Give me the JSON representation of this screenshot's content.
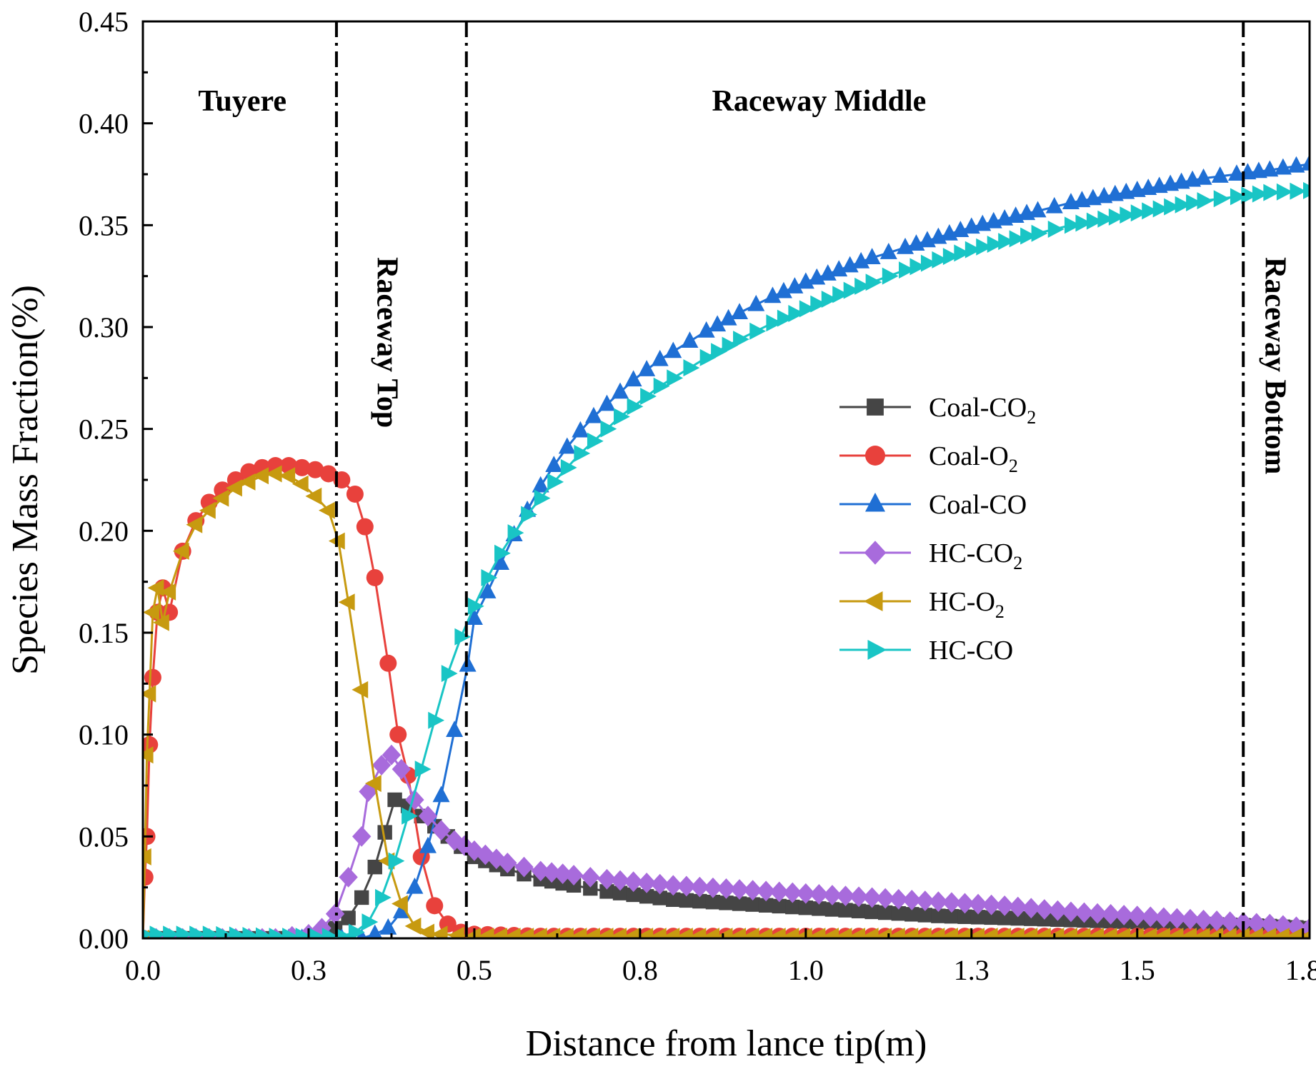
{
  "chart_data": {
    "type": "line",
    "xlabel": "Distance from lance tip(m)",
    "ylabel": "Species Mass Fraction(%)",
    "xlim": [
      0.0,
      1.76
    ],
    "ylim": [
      0.0,
      0.45
    ],
    "x_ticks": [
      0.0,
      0.25,
      0.5,
      0.75,
      1.0,
      1.25,
      1.5,
      1.75
    ],
    "x_tick_labels": [
      "0.0",
      "0.3",
      "0.5",
      "0.8",
      "1.0",
      "1.3",
      "1.5",
      "1.8"
    ],
    "y_ticks": [
      0.0,
      0.05,
      0.1,
      0.15,
      0.2,
      0.25,
      0.3,
      0.35,
      0.4,
      0.45
    ],
    "y_tick_labels": [
      "0.00",
      "0.05",
      "0.10",
      "0.15",
      "0.20",
      "0.25",
      "0.30",
      "0.35",
      "0.40",
      "0.45"
    ],
    "grid": false,
    "legend_position": "center-right",
    "region_lines": [
      0.292,
      0.488,
      1.66
    ],
    "regions": [
      {
        "label": "Tuyere",
        "x": 0.15,
        "orientation": "horizontal"
      },
      {
        "label": "Raceway Top",
        "x": 0.37,
        "orientation": "vertical"
      },
      {
        "label": "Raceway Middle",
        "x": 1.02,
        "orientation": "horizontal"
      },
      {
        "label": "Raceway Bottom",
        "x": 1.71,
        "orientation": "vertical"
      }
    ],
    "series": [
      {
        "name": "Coal-CO2",
        "label_main": "Coal-CO",
        "label_sub": "2",
        "color": "#454545",
        "marker": "square",
        "points": [
          [
            0.0,
            0.0
          ],
          [
            0.1,
            0.0
          ],
          [
            0.2,
            0.0
          ],
          [
            0.27,
            0.0
          ],
          [
            0.29,
            0.005
          ],
          [
            0.31,
            0.01
          ],
          [
            0.33,
            0.02
          ],
          [
            0.35,
            0.035
          ],
          [
            0.365,
            0.052
          ],
          [
            0.38,
            0.068
          ],
          [
            0.4,
            0.065
          ],
          [
            0.42,
            0.06
          ],
          [
            0.44,
            0.055
          ],
          [
            0.46,
            0.05
          ],
          [
            0.48,
            0.045
          ],
          [
            0.5,
            0.04
          ],
          [
            0.55,
            0.034
          ],
          [
            0.6,
            0.029
          ],
          [
            0.65,
            0.026
          ],
          [
            0.7,
            0.023
          ],
          [
            0.8,
            0.019
          ],
          [
            0.9,
            0.017
          ],
          [
            1.0,
            0.015
          ],
          [
            1.1,
            0.013
          ],
          [
            1.2,
            0.011
          ],
          [
            1.3,
            0.01
          ],
          [
            1.4,
            0.009
          ],
          [
            1.5,
            0.008
          ],
          [
            1.6,
            0.007
          ],
          [
            1.7,
            0.006
          ],
          [
            1.76,
            0.005
          ]
        ]
      },
      {
        "name": "Coal-O2",
        "label_main": "Coal-O",
        "label_sub": "2",
        "color": "#e8413c",
        "marker": "circle",
        "points": [
          [
            0.0,
            0.0
          ],
          [
            0.003,
            0.03
          ],
          [
            0.006,
            0.05
          ],
          [
            0.01,
            0.095
          ],
          [
            0.015,
            0.128
          ],
          [
            0.022,
            0.16
          ],
          [
            0.03,
            0.172
          ],
          [
            0.04,
            0.16
          ],
          [
            0.06,
            0.19
          ],
          [
            0.08,
            0.205
          ],
          [
            0.1,
            0.214
          ],
          [
            0.12,
            0.22
          ],
          [
            0.14,
            0.225
          ],
          [
            0.16,
            0.229
          ],
          [
            0.18,
            0.231
          ],
          [
            0.2,
            0.232
          ],
          [
            0.22,
            0.232
          ],
          [
            0.24,
            0.231
          ],
          [
            0.26,
            0.23
          ],
          [
            0.28,
            0.228
          ],
          [
            0.3,
            0.225
          ],
          [
            0.32,
            0.218
          ],
          [
            0.335,
            0.202
          ],
          [
            0.35,
            0.177
          ],
          [
            0.37,
            0.135
          ],
          [
            0.385,
            0.1
          ],
          [
            0.4,
            0.08
          ],
          [
            0.42,
            0.04
          ],
          [
            0.44,
            0.016
          ],
          [
            0.46,
            0.007
          ],
          [
            0.48,
            0.003
          ],
          [
            0.5,
            0.002
          ],
          [
            0.6,
            0.001
          ],
          [
            0.8,
            0.001
          ],
          [
            1.0,
            0.001
          ],
          [
            1.2,
            0.001
          ],
          [
            1.4,
            0.001
          ],
          [
            1.6,
            0.001
          ],
          [
            1.76,
            0.001
          ]
        ]
      },
      {
        "name": "Coal-CO",
        "label_main": "Coal-CO",
        "label_sub": "",
        "color": "#1f6fd4",
        "marker": "triangle-up",
        "points": [
          [
            0.0,
            0.0
          ],
          [
            0.2,
            0.0
          ],
          [
            0.3,
            0.0
          ],
          [
            0.33,
            0.0
          ],
          [
            0.35,
            0.002
          ],
          [
            0.37,
            0.005
          ],
          [
            0.39,
            0.013
          ],
          [
            0.41,
            0.025
          ],
          [
            0.43,
            0.045
          ],
          [
            0.45,
            0.07
          ],
          [
            0.47,
            0.102
          ],
          [
            0.49,
            0.134
          ],
          [
            0.5,
            0.157
          ],
          [
            0.52,
            0.17
          ],
          [
            0.54,
            0.184
          ],
          [
            0.56,
            0.198
          ],
          [
            0.58,
            0.21
          ],
          [
            0.6,
            0.222
          ],
          [
            0.62,
            0.232
          ],
          [
            0.64,
            0.241
          ],
          [
            0.66,
            0.249
          ],
          [
            0.68,
            0.256
          ],
          [
            0.7,
            0.262
          ],
          [
            0.72,
            0.268
          ],
          [
            0.74,
            0.274
          ],
          [
            0.76,
            0.279
          ],
          [
            0.78,
            0.284
          ],
          [
            0.8,
            0.288
          ],
          [
            0.85,
            0.298
          ],
          [
            0.9,
            0.307
          ],
          [
            0.95,
            0.315
          ],
          [
            1.0,
            0.322
          ],
          [
            1.05,
            0.328
          ],
          [
            1.1,
            0.334
          ],
          [
            1.15,
            0.339
          ],
          [
            1.2,
            0.344
          ],
          [
            1.25,
            0.349
          ],
          [
            1.3,
            0.353
          ],
          [
            1.35,
            0.357
          ],
          [
            1.4,
            0.361
          ],
          [
            1.45,
            0.364
          ],
          [
            1.5,
            0.367
          ],
          [
            1.55,
            0.37
          ],
          [
            1.6,
            0.373
          ],
          [
            1.65,
            0.375
          ],
          [
            1.7,
            0.377
          ],
          [
            1.76,
            0.38
          ]
        ]
      },
      {
        "name": "HC-CO2",
        "label_main": "HC-CO",
        "label_sub": "2",
        "color": "#a86bdc",
        "marker": "diamond",
        "points": [
          [
            0.0,
            0.0
          ],
          [
            0.1,
            0.0
          ],
          [
            0.2,
            0.0
          ],
          [
            0.25,
            0.002
          ],
          [
            0.27,
            0.005
          ],
          [
            0.29,
            0.012
          ],
          [
            0.31,
            0.03
          ],
          [
            0.33,
            0.05
          ],
          [
            0.34,
            0.072
          ],
          [
            0.36,
            0.085
          ],
          [
            0.375,
            0.09
          ],
          [
            0.39,
            0.083
          ],
          [
            0.41,
            0.068
          ],
          [
            0.43,
            0.06
          ],
          [
            0.45,
            0.053
          ],
          [
            0.47,
            0.048
          ],
          [
            0.5,
            0.043
          ],
          [
            0.55,
            0.037
          ],
          [
            0.6,
            0.033
          ],
          [
            0.65,
            0.031
          ],
          [
            0.7,
            0.029
          ],
          [
            0.8,
            0.026
          ],
          [
            0.9,
            0.024
          ],
          [
            1.0,
            0.022
          ],
          [
            1.1,
            0.02
          ],
          [
            1.2,
            0.018
          ],
          [
            1.3,
            0.016
          ],
          [
            1.4,
            0.013
          ],
          [
            1.5,
            0.011
          ],
          [
            1.6,
            0.009
          ],
          [
            1.7,
            0.007
          ],
          [
            1.76,
            0.005
          ]
        ]
      },
      {
        "name": "HC-O2",
        "label_main": "HC-O",
        "label_sub": "2",
        "color": "#c79a10",
        "marker": "triangle-left",
        "points": [
          [
            0.0,
            0.0
          ],
          [
            0.003,
            0.04
          ],
          [
            0.006,
            0.09
          ],
          [
            0.01,
            0.12
          ],
          [
            0.015,
            0.16
          ],
          [
            0.022,
            0.172
          ],
          [
            0.03,
            0.155
          ],
          [
            0.04,
            0.17
          ],
          [
            0.06,
            0.19
          ],
          [
            0.08,
            0.203
          ],
          [
            0.1,
            0.21
          ],
          [
            0.12,
            0.216
          ],
          [
            0.14,
            0.221
          ],
          [
            0.16,
            0.224
          ],
          [
            0.18,
            0.227
          ],
          [
            0.2,
            0.228
          ],
          [
            0.22,
            0.227
          ],
          [
            0.24,
            0.223
          ],
          [
            0.26,
            0.217
          ],
          [
            0.28,
            0.21
          ],
          [
            0.295,
            0.195
          ],
          [
            0.31,
            0.165
          ],
          [
            0.33,
            0.122
          ],
          [
            0.35,
            0.076
          ],
          [
            0.37,
            0.038
          ],
          [
            0.39,
            0.017
          ],
          [
            0.41,
            0.006
          ],
          [
            0.43,
            0.003
          ],
          [
            0.45,
            0.002
          ],
          [
            0.5,
            0.001
          ],
          [
            0.6,
            0.001
          ],
          [
            0.8,
            0.001
          ],
          [
            1.0,
            0.001
          ],
          [
            1.2,
            0.001
          ],
          [
            1.4,
            0.001
          ],
          [
            1.6,
            0.001
          ],
          [
            1.76,
            0.001
          ]
        ]
      },
      {
        "name": "HC-CO",
        "label_main": "HC-CO",
        "label_sub": "",
        "color": "#19c5c5",
        "marker": "triangle-right",
        "points": [
          [
            0.0,
            0.002
          ],
          [
            0.1,
            0.002
          ],
          [
            0.2,
            0.001
          ],
          [
            0.3,
            0.001
          ],
          [
            0.32,
            0.003
          ],
          [
            0.34,
            0.008
          ],
          [
            0.36,
            0.02
          ],
          [
            0.38,
            0.038
          ],
          [
            0.4,
            0.06
          ],
          [
            0.42,
            0.083
          ],
          [
            0.44,
            0.107
          ],
          [
            0.46,
            0.13
          ],
          [
            0.48,
            0.148
          ],
          [
            0.5,
            0.163
          ],
          [
            0.52,
            0.177
          ],
          [
            0.54,
            0.189
          ],
          [
            0.56,
            0.199
          ],
          [
            0.58,
            0.208
          ],
          [
            0.6,
            0.216
          ],
          [
            0.62,
            0.224
          ],
          [
            0.64,
            0.231
          ],
          [
            0.66,
            0.238
          ],
          [
            0.68,
            0.244
          ],
          [
            0.7,
            0.25
          ],
          [
            0.72,
            0.256
          ],
          [
            0.74,
            0.261
          ],
          [
            0.76,
            0.266
          ],
          [
            0.78,
            0.271
          ],
          [
            0.8,
            0.275
          ],
          [
            0.85,
            0.285
          ],
          [
            0.9,
            0.294
          ],
          [
            0.95,
            0.302
          ],
          [
            1.0,
            0.309
          ],
          [
            1.05,
            0.316
          ],
          [
            1.1,
            0.322
          ],
          [
            1.15,
            0.328
          ],
          [
            1.2,
            0.333
          ],
          [
            1.25,
            0.338
          ],
          [
            1.3,
            0.342
          ],
          [
            1.35,
            0.346
          ],
          [
            1.4,
            0.35
          ],
          [
            1.45,
            0.353
          ],
          [
            1.5,
            0.356
          ],
          [
            1.55,
            0.359
          ],
          [
            1.6,
            0.362
          ],
          [
            1.65,
            0.364
          ],
          [
            1.7,
            0.366
          ],
          [
            1.76,
            0.367
          ]
        ]
      }
    ]
  }
}
